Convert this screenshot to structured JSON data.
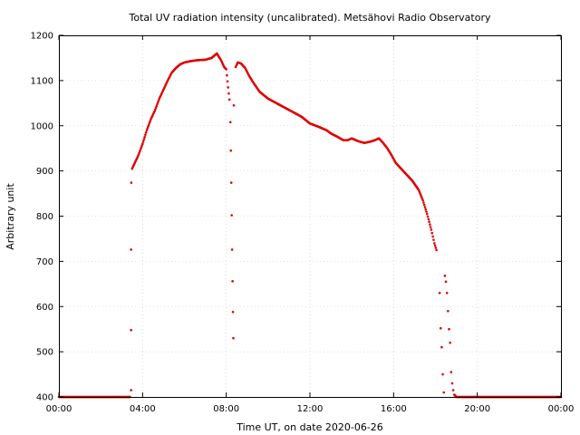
{
  "chart_data": {
    "type": "scatter",
    "title": "Total UV radiation intensity (uncalibrated). Metsähovi Radio Observatory",
    "xlabel": "Time UT, on date 2020-06-26",
    "ylabel": "Arbitrary unit",
    "xlim": [
      "00:00",
      "24:00"
    ],
    "ylim": [
      400,
      1200
    ],
    "x_ticks": [
      "00:00",
      "04:00",
      "08:00",
      "12:00",
      "16:00",
      "20:00",
      "00:00"
    ],
    "y_ticks": [
      "400",
      "500",
      "600",
      "700",
      "800",
      "900",
      "1000",
      "1100",
      "1200"
    ],
    "grid": true,
    "marker_color": "#e00000",
    "series": [
      {
        "x_unit": "hours UT",
        "points": [
          [
            0.0,
            400
          ],
          [
            3.4,
            400
          ],
          [
            3.45,
            415
          ],
          [
            3.45,
            548
          ],
          [
            3.45,
            726
          ],
          [
            3.46,
            874
          ],
          [
            3.5,
            905
          ],
          [
            3.6,
            915
          ],
          [
            3.8,
            935
          ],
          [
            4.0,
            960
          ],
          [
            4.2,
            990
          ],
          [
            4.4,
            1015
          ],
          [
            4.6,
            1035
          ],
          [
            4.8,
            1060
          ],
          [
            5.0,
            1080
          ],
          [
            5.2,
            1100
          ],
          [
            5.4,
            1118
          ],
          [
            5.6,
            1128
          ],
          [
            5.8,
            1136
          ],
          [
            6.0,
            1140
          ],
          [
            6.3,
            1143
          ],
          [
            6.6,
            1145
          ],
          [
            7.0,
            1146
          ],
          [
            7.3,
            1150
          ],
          [
            7.55,
            1160
          ],
          [
            7.75,
            1145
          ],
          [
            7.9,
            1130
          ],
          [
            8.0,
            1125
          ],
          [
            8.15,
            1058
          ],
          [
            8.2,
            1008
          ],
          [
            8.22,
            945
          ],
          [
            8.24,
            874
          ],
          [
            8.26,
            802
          ],
          [
            8.28,
            726
          ],
          [
            8.3,
            656
          ],
          [
            8.32,
            588
          ],
          [
            8.34,
            530
          ],
          [
            8.36,
            1045
          ],
          [
            8.45,
            1130
          ],
          [
            8.55,
            1140
          ],
          [
            8.7,
            1138
          ],
          [
            8.9,
            1128
          ],
          [
            9.1,
            1110
          ],
          [
            9.3,
            1095
          ],
          [
            9.6,
            1075
          ],
          [
            10.0,
            1060
          ],
          [
            10.4,
            1050
          ],
          [
            10.8,
            1040
          ],
          [
            11.2,
            1030
          ],
          [
            11.6,
            1020
          ],
          [
            12.0,
            1005
          ],
          [
            12.4,
            998
          ],
          [
            12.8,
            990
          ],
          [
            13.0,
            983
          ],
          [
            13.3,
            976
          ],
          [
            13.6,
            968
          ],
          [
            13.8,
            968
          ],
          [
            14.0,
            972
          ],
          [
            14.3,
            966
          ],
          [
            14.6,
            962
          ],
          [
            14.9,
            965
          ],
          [
            15.1,
            968
          ],
          [
            15.3,
            972
          ],
          [
            15.5,
            962
          ],
          [
            15.7,
            950
          ],
          [
            15.9,
            935
          ],
          [
            16.1,
            918
          ],
          [
            16.3,
            908
          ],
          [
            16.6,
            893
          ],
          [
            16.9,
            878
          ],
          [
            17.2,
            858
          ],
          [
            17.4,
            835
          ],
          [
            17.6,
            805
          ],
          [
            17.8,
            770
          ],
          [
            17.95,
            740
          ],
          [
            18.05,
            725
          ],
          [
            18.2,
            630
          ],
          [
            18.25,
            552
          ],
          [
            18.3,
            510
          ],
          [
            18.35,
            450
          ],
          [
            18.4,
            410
          ],
          [
            18.45,
            668
          ],
          [
            18.5,
            655
          ],
          [
            18.55,
            630
          ],
          [
            18.6,
            590
          ],
          [
            18.65,
            550
          ],
          [
            18.7,
            520
          ],
          [
            18.75,
            455
          ],
          [
            18.8,
            430
          ],
          [
            18.85,
            415
          ],
          [
            18.9,
            405
          ],
          [
            19.0,
            400
          ],
          [
            24.0,
            400
          ]
        ]
      }
    ]
  }
}
